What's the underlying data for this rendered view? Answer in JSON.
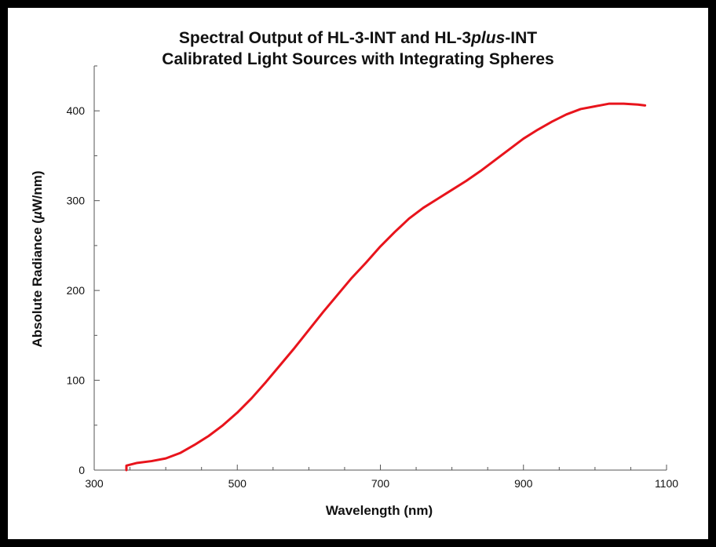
{
  "chart_data": {
    "type": "line",
    "title_line1": "Spectral Output of HL-3-INT and HL-3plus-INT",
    "title_line1_parts": [
      "Spectral Output of HL-3-INT and HL-3",
      "plus",
      "-INT"
    ],
    "title_line2": "Calibrated Light Sources with Integrating Spheres",
    "xlabel": "Wavelength (nm)",
    "ylabel_parts": [
      "Absolute Radiance (",
      "µ",
      "W/nm)"
    ],
    "ylabel": "Absolute Radiance (µW/nm)",
    "xlim": [
      300,
      1100
    ],
    "ylim": [
      0,
      450
    ],
    "x_ticks": [
      300,
      500,
      700,
      900,
      1100
    ],
    "x_tick_labels": [
      "300",
      "500",
      "700",
      "900",
      "1100"
    ],
    "x_minor_step": 50,
    "y_ticks": [
      0,
      100,
      200,
      300,
      400
    ],
    "y_tick_labels": [
      "0",
      "100",
      "200",
      "300",
      "400"
    ],
    "y_minor_step": 50,
    "grid": false,
    "series": [
      {
        "color": "#e8141c",
        "x": [
          345,
          345,
          360,
          380,
          400,
          420,
          440,
          460,
          480,
          500,
          520,
          540,
          560,
          580,
          600,
          620,
          640,
          660,
          680,
          700,
          720,
          740,
          760,
          780,
          800,
          820,
          840,
          860,
          880,
          900,
          920,
          940,
          960,
          980,
          1000,
          1020,
          1040,
          1060,
          1070
        ],
        "y": [
          0,
          5,
          8,
          10,
          13,
          19,
          28,
          38,
          50,
          64,
          80,
          98,
          117,
          136,
          156,
          176,
          195,
          214,
          231,
          249,
          265,
          280,
          292,
          302,
          312,
          322,
          333,
          345,
          357,
          369,
          379,
          388,
          396,
          402,
          405,
          408,
          408,
          407,
          406
        ]
      }
    ]
  }
}
